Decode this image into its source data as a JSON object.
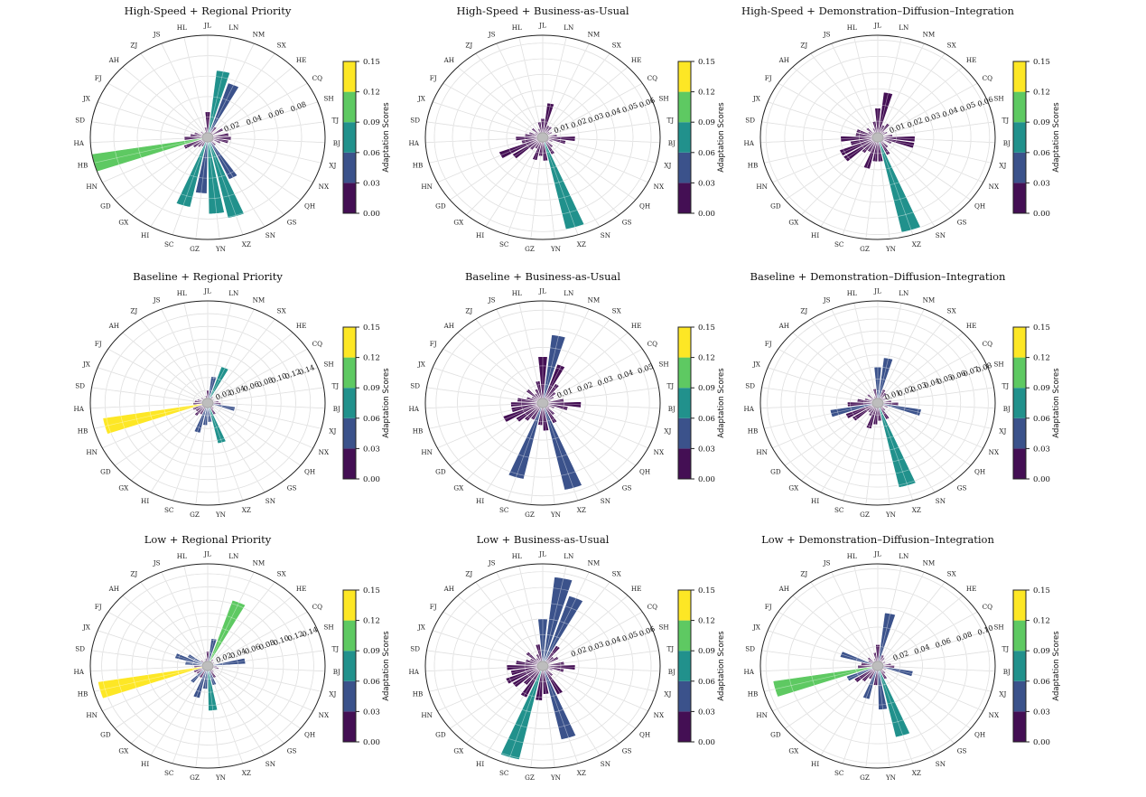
{
  "page": {
    "background": "#ffffff"
  },
  "chart_data": {
    "type": "bar",
    "subtype": "polar-rose-grid-3x3",
    "shared": {
      "value_name": "Adaptation Scores",
      "categories": [
        "JL",
        "LN",
        "NM",
        "SX",
        "HE",
        "CQ",
        "SH",
        "TJ",
        "BJ",
        "XJ",
        "NX",
        "QH",
        "GS",
        "SN",
        "XZ",
        "YN",
        "GZ",
        "SC",
        "HI",
        "GX",
        "GD",
        "HN",
        "HB",
        "HA",
        "SD",
        "JX",
        "FJ",
        "AH",
        "ZJ",
        "JS",
        "HL"
      ],
      "start_angle_deg": 0,
      "direction": "clockwise",
      "grid": true,
      "colorbar": {
        "label": "Adaptation Scores",
        "tick_labels": [
          "0.00",
          "0.03",
          "0.06",
          "0.09",
          "0.12",
          "0.15"
        ],
        "bounds": [
          0,
          0.03,
          0.06,
          0.09,
          0.12,
          0.15
        ],
        "bin_colors": [
          "#440f54",
          "#3b528b",
          "#21918c",
          "#5ec962",
          "#fde725"
        ]
      }
    },
    "charts": [
      {
        "title": "High-Speed + Regional Priority",
        "radial_ticks": [
          "0.02",
          "0.04",
          "0.06",
          "0.08"
        ],
        "rmax": 0.1,
        "values": [
          0.025,
          0.066,
          0.056,
          0.012,
          0.006,
          0.015,
          0.005,
          0.018,
          0.02,
          0.018,
          0.012,
          0.006,
          0.01,
          0.045,
          0.081,
          0.075,
          0.055,
          0.07,
          0.01,
          0.012,
          0.015,
          0.022,
          0.105,
          0.02,
          0.015,
          0.012,
          0.006,
          0.008,
          0.005,
          0.006,
          0.01
        ]
      },
      {
        "title": "High-Speed + Business-as-Usual",
        "radial_ticks": [
          "0.01",
          "0.02",
          "0.03",
          "0.04",
          "0.05",
          "0.06"
        ],
        "rmax": 0.065,
        "values": [
          0.012,
          0.022,
          0.008,
          0.008,
          0.005,
          0.006,
          0.003,
          0.008,
          0.018,
          0.013,
          0.006,
          0.004,
          0.008,
          0.012,
          0.06,
          0.015,
          0.012,
          0.015,
          0.008,
          0.01,
          0.02,
          0.026,
          0.012,
          0.015,
          0.01,
          0.008,
          0.005,
          0.008,
          0.004,
          0.006,
          0.01
        ]
      },
      {
        "title": "High-Speed + Demonstration–Diffusion–Integration",
        "radial_ticks": [
          "0.01",
          "0.02",
          "0.03",
          "0.04",
          "0.05",
          "0.06"
        ],
        "rmax": 0.063,
        "values": [
          0.018,
          0.028,
          0.008,
          0.01,
          0.005,
          0.006,
          0.003,
          0.008,
          0.02,
          0.02,
          0.008,
          0.004,
          0.008,
          0.012,
          0.06,
          0.015,
          0.015,
          0.02,
          0.01,
          0.012,
          0.022,
          0.022,
          0.015,
          0.02,
          0.012,
          0.012,
          0.006,
          0.008,
          0.004,
          0.006,
          0.01
        ]
      },
      {
        "title": "Baseline + Regional Priority",
        "radial_ticks": [
          "0.02",
          "0.04",
          "0.06",
          "0.08",
          "0.10",
          "0.12",
          "0.14"
        ],
        "rmax": 0.16,
        "values": [
          0.02,
          0.042,
          0.06,
          0.012,
          0.008,
          0.01,
          0.005,
          0.015,
          0.018,
          0.038,
          0.01,
          0.006,
          0.012,
          0.02,
          0.065,
          0.03,
          0.035,
          0.048,
          0.02,
          0.025,
          0.02,
          0.022,
          0.145,
          0.02,
          0.018,
          0.015,
          0.008,
          0.012,
          0.006,
          0.008,
          0.012
        ]
      },
      {
        "title": "Baseline + Business-as-Usual",
        "radial_ticks": [
          "0.01",
          "0.02",
          "0.03",
          "0.04",
          "0.05"
        ],
        "rmax": 0.055,
        "values": [
          0.025,
          0.037,
          0.022,
          0.012,
          0.008,
          0.006,
          0.004,
          0.01,
          0.018,
          0.012,
          0.006,
          0.004,
          0.008,
          0.012,
          0.048,
          0.015,
          0.012,
          0.042,
          0.01,
          0.012,
          0.015,
          0.02,
          0.015,
          0.015,
          0.012,
          0.008,
          0.006,
          0.01,
          0.006,
          0.008,
          0.012
        ]
      },
      {
        "title": "Baseline + Demonstration–Diffusion–Integration",
        "radial_ticks": [
          "0.01",
          "0.02",
          "0.03",
          "0.04",
          "0.05",
          "0.06",
          "0.07",
          "0.08"
        ],
        "rmax": 0.085,
        "values": [
          0.03,
          0.038,
          0.012,
          0.01,
          0.006,
          0.008,
          0.004,
          0.01,
          0.015,
          0.032,
          0.008,
          0.005,
          0.008,
          0.015,
          0.072,
          0.015,
          0.018,
          0.022,
          0.012,
          0.01,
          0.022,
          0.025,
          0.035,
          0.022,
          0.015,
          0.01,
          0.006,
          0.01,
          0.005,
          0.006,
          0.012
        ]
      },
      {
        "title": "Low + Regional Priority",
        "radial_ticks": [
          "0.02",
          "0.04",
          "0.06",
          "0.08",
          "0.10",
          "0.12",
          "0.14"
        ],
        "rmax": 0.155,
        "values": [
          0.022,
          0.042,
          0.105,
          0.012,
          0.008,
          0.01,
          0.005,
          0.05,
          0.012,
          0.015,
          0.008,
          0.005,
          0.012,
          0.02,
          0.03,
          0.068,
          0.035,
          0.05,
          0.02,
          0.032,
          0.018,
          0.02,
          0.147,
          0.018,
          0.03,
          0.045,
          0.03,
          0.012,
          0.008,
          0.01,
          0.012
        ]
      },
      {
        "title": "Low + Business-as-Usual",
        "radial_ticks": [
          "0.02",
          "0.03",
          "0.04",
          "0.05",
          "0.06"
        ],
        "rmax": 0.065,
        "values": [
          0.03,
          0.057,
          0.047,
          0.015,
          0.008,
          0.01,
          0.004,
          0.012,
          0.018,
          0.012,
          0.006,
          0.004,
          0.008,
          0.02,
          0.048,
          0.018,
          0.022,
          0.061,
          0.022,
          0.015,
          0.02,
          0.022,
          0.018,
          0.02,
          0.015,
          0.01,
          0.008,
          0.012,
          0.006,
          0.008,
          0.014
        ]
      },
      {
        "title": "Low + Demonstration–Diffusion–Integration",
        "radial_ticks": [
          "0.02",
          "0.04",
          "0.06",
          "0.08",
          "0.10"
        ],
        "rmax": 0.105,
        "values": [
          0.022,
          0.055,
          0.012,
          0.01,
          0.006,
          0.008,
          0.004,
          0.012,
          0.015,
          0.032,
          0.008,
          0.005,
          0.01,
          0.015,
          0.075,
          0.045,
          0.02,
          0.035,
          0.015,
          0.02,
          0.025,
          0.03,
          0.095,
          0.018,
          0.015,
          0.035,
          0.01,
          0.012,
          0.006,
          0.008,
          0.014
        ]
      }
    ]
  }
}
